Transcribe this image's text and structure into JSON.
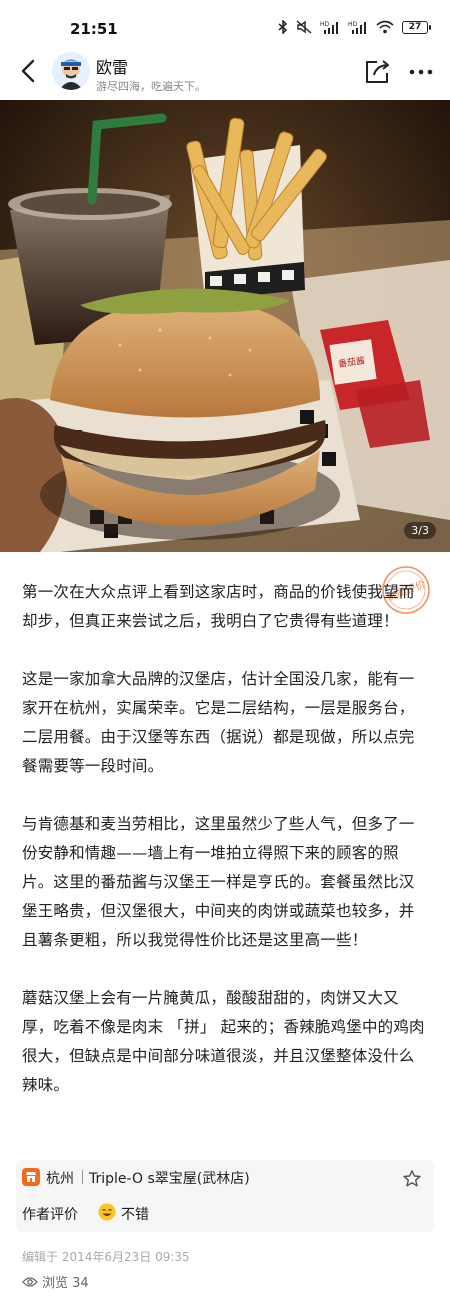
{
  "status_bar": {
    "time": "21:51",
    "battery": "27",
    "icons": [
      "bluetooth-icon",
      "mute-icon",
      "signal-hd-icon",
      "signal-hd-icon",
      "wifi-icon",
      "battery-icon"
    ]
  },
  "header": {
    "author_name": "欧雷",
    "author_bio": "游尽四海，吃遍天下。",
    "icons": [
      "back-icon",
      "share-icon",
      "more-icon"
    ]
  },
  "photo": {
    "counter": "3/3",
    "ketchup_text": "番茄酱"
  },
  "stamp": {
    "text": "优质评价",
    "color": "#e8703a"
  },
  "article": {
    "paragraphs": [
      "第一次在大众点评上看到这家店时，商品的价钱使我望而却步，但真正来尝试之后，我明白了它贵得有些道理！",
      "这是一家加拿大品牌的汉堡店，估计全国没几家，能有一家开在杭州，实属荣幸。它是二层结构，一层是服务台，二层用餐。由于汉堡等东西（据说）都是现做，所以点完餐需要等一段时间。",
      "与肯德基和麦当劳相比，这里虽然少了些人气，但多了一份安静和情趣——墙上有一堆拍立得照下来的顾客的照片。这里的番茄酱与汉堡王一样是亨氏的。套餐虽然比汉堡王略贵，但汉堡很大，中间夹的肉饼或蔬菜也较多，并且薯条更粗，所以我觉得性价比还是这里高一些！",
      "蘑菇汉堡上会有一片腌黄瓜，酸酸甜甜的，肉饼又大又厚，吃着不像是肉末 「拼」 起来的；香辣脆鸡堡中的鸡肉很大，但缺点是中间部分味道很淡，并且汉堡整体没什么辣味。"
    ]
  },
  "shop": {
    "city": "杭州",
    "name": "Triple-O s翠宝屋(武林店)",
    "rating_label": "作者评价",
    "rating_value": "不错",
    "accent": "#f26b1d"
  },
  "footer": {
    "edit_time": "编辑于 2014年6月23日 09:35",
    "views": "浏览 34"
  }
}
